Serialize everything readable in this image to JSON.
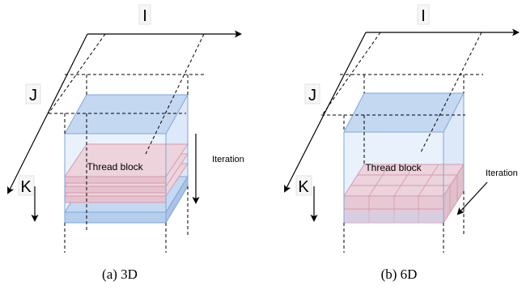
{
  "panels": [
    {
      "axis_i": "I",
      "axis_j": "J",
      "axis_k": "K",
      "block_label": "Thread block",
      "iteration_label": "Iteration",
      "caption": "(a) 3D"
    },
    {
      "axis_i": "I",
      "axis_j": "J",
      "axis_k": "K",
      "block_label": "Thread block",
      "iteration_label": "Iteration",
      "caption": "(b) 6D"
    }
  ],
  "colors": {
    "slab_blue_fill": "#c5d8f2",
    "slab_blue_stroke": "#7ea6d8",
    "slab_pink_fill": "#ecd3dc",
    "slab_pink_stroke": "#d79aae",
    "volume_fill": "#e6effb",
    "ink": "#000000"
  }
}
